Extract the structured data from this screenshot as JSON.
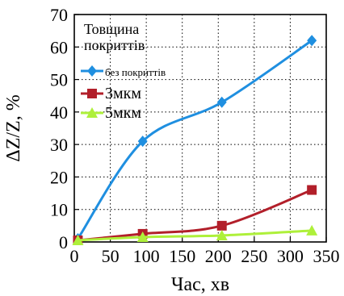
{
  "chart_data": {
    "type": "line",
    "title": "",
    "xlabel": "Час, хв",
    "ylabel": "ΔZ/Z, %",
    "xlim": [
      0,
      350
    ],
    "ylim": [
      0,
      70
    ],
    "xticks": [
      0,
      50,
      100,
      150,
      200,
      250,
      300,
      350
    ],
    "yticks": [
      0,
      10,
      20,
      30,
      40,
      50,
      60,
      70
    ],
    "xtick_labels": [
      "0",
      "50",
      "100",
      "150",
      "200",
      "250",
      "300",
      "350"
    ],
    "ytick_labels": [
      "0",
      "10",
      "20",
      "30",
      "40",
      "50",
      "60",
      "70"
    ],
    "grid": true,
    "legend_position": "top-left",
    "legend_title": "Товщина покриттів",
    "series": [
      {
        "name": "без покриттів",
        "color": "#1f8fe0",
        "marker": "diamond",
        "x": [
          5,
          95,
          205,
          330
        ],
        "y": [
          1,
          31,
          43,
          62
        ]
      },
      {
        "name": "3мкм",
        "color": "#b21f2a",
        "marker": "square",
        "x": [
          5,
          95,
          205,
          330
        ],
        "y": [
          0.5,
          2.5,
          5,
          16
        ]
      },
      {
        "name": "5мкм",
        "color": "#aef03a",
        "marker": "triangle",
        "x": [
          5,
          95,
          205,
          330
        ],
        "y": [
          0.5,
          1.5,
          2,
          3.5
        ]
      }
    ]
  }
}
